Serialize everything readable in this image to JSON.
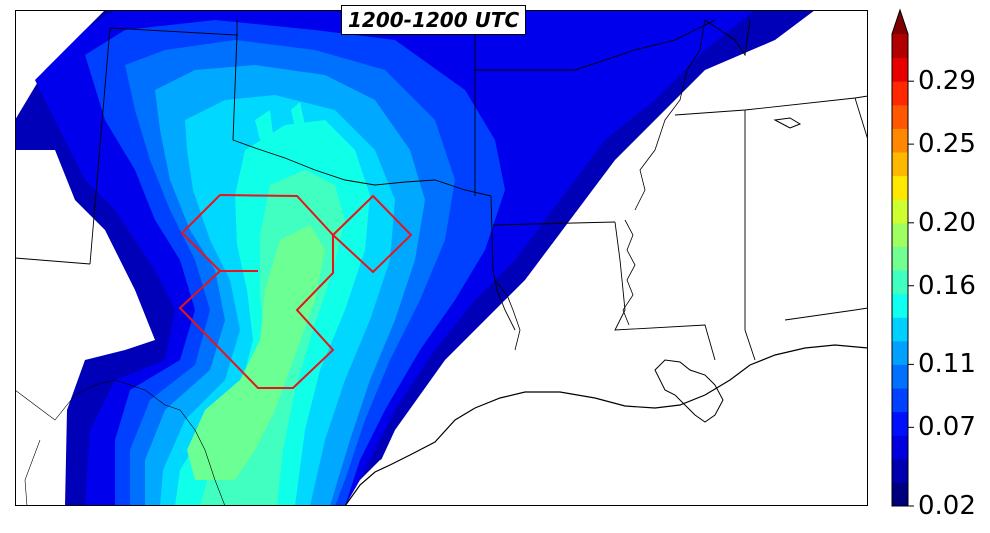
{
  "title": "1200-1200 UTC",
  "colorbar": {
    "tick_labels": [
      "0.02",
      "0.07",
      "0.11",
      "0.16",
      "0.20",
      "0.25",
      "0.29"
    ],
    "tick_values": [
      0.02,
      0.07,
      0.11,
      0.16,
      0.2,
      0.25,
      0.29
    ],
    "vmin": 0.02,
    "vmax": 0.32,
    "extend": "max",
    "colors": [
      "#00007f",
      "#0000b0",
      "#0000e0",
      "#0010ff",
      "#0040ff",
      "#0070ff",
      "#00a0ff",
      "#00d0ff",
      "#10fff0",
      "#40ffc0",
      "#70ff90",
      "#a0ff60",
      "#d0ff30",
      "#ffe800",
      "#ffb800",
      "#ff8800",
      "#ff5800",
      "#ff2800",
      "#e80000",
      "#b00000",
      "#800000"
    ]
  },
  "map": {
    "colormap": "jet",
    "boxed_region_color": "#e8141c",
    "land_color": "#ffffff"
  }
}
